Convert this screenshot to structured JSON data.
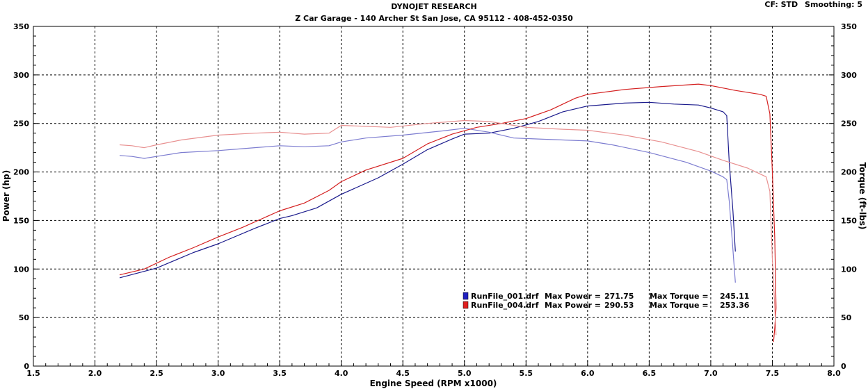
{
  "header": {
    "title": "DYNOJET RESEARCH",
    "subtitle": "Z Car Garage - 140 Archer St San Jose, CA 95112 - 408-452-0350",
    "cf": "CF: STD",
    "smoothing": "Smoothing: 5"
  },
  "legend": [
    {
      "file": "RunFile_001.drf",
      "power_label": "Max Power =",
      "power": "271.75",
      "torque_label": "Max Torque =",
      "torque": "245.11",
      "color": "#1a1a8c"
    },
    {
      "file": "RunFile_004.drf",
      "power_label": "Max Power =",
      "power": "290.53",
      "torque_label": "Max Torque =",
      "torque": "253.36",
      "color": "#d42020"
    }
  ],
  "chart_data": {
    "type": "line",
    "title": "DYNOJET RESEARCH",
    "subtitle": "Z Car Garage - 140 Archer St San Jose, CA 95112 - 408-452-0350",
    "xlabel": "Engine Speed (RPM x1000)",
    "ylabel": "Power (hp)",
    "y2label": "Torque (ft-lbs)",
    "xlim": [
      1.5,
      8.0
    ],
    "ylim": [
      0,
      350
    ],
    "y2lim": [
      0,
      350
    ],
    "xticks": [
      "1.5",
      "2.0",
      "2.5",
      "3.0",
      "3.5",
      "4.0",
      "4.5",
      "5.0",
      "5.5",
      "6.0",
      "6.5",
      "7.0",
      "7.5",
      "8.0"
    ],
    "yticks": [
      "0",
      "50",
      "100",
      "150",
      "200",
      "250",
      "300",
      "350"
    ],
    "grid": true,
    "series": [
      {
        "name": "RunFile_001.drf",
        "measure": "power",
        "color": "#1a1a8c",
        "x": [
          2.2,
          2.5,
          2.8,
          3.0,
          3.3,
          3.5,
          3.6,
          3.8,
          4.0,
          4.3,
          4.5,
          4.7,
          4.9,
          5.0,
          5.2,
          5.4,
          5.6,
          5.8,
          6.0,
          6.3,
          6.5,
          6.7,
          6.9,
          7.0,
          7.1,
          7.13,
          7.15,
          7.18,
          7.2
        ],
        "y": [
          91,
          101,
          117,
          126,
          142,
          152,
          155,
          163,
          177,
          194,
          208,
          223,
          234,
          239,
          240,
          245,
          252,
          262,
          268,
          271,
          271.75,
          270,
          269,
          266,
          262,
          258,
          210,
          160,
          118
        ]
      },
      {
        "name": "RunFile_001.drf",
        "measure": "torque",
        "color": "#7c7cd0",
        "x": [
          2.2,
          2.3,
          2.4,
          2.5,
          2.7,
          3.0,
          3.2,
          3.4,
          3.5,
          3.7,
          3.9,
          4.0,
          4.2,
          4.5,
          4.8,
          5.0,
          5.2,
          5.4,
          5.6,
          5.8,
          6.0,
          6.2,
          6.5,
          6.8,
          7.0,
          7.1,
          7.13,
          7.15,
          7.18,
          7.2
        ],
        "y": [
          217,
          216,
          214,
          216,
          220,
          222,
          224,
          226,
          227,
          226,
          227,
          231,
          235,
          238,
          242,
          245,
          241,
          235,
          234,
          233,
          232,
          228,
          220,
          210,
          201,
          195,
          192,
          170,
          120,
          86
        ]
      },
      {
        "name": "RunFile_004.drf",
        "measure": "power",
        "color": "#d42020",
        "x": [
          2.2,
          2.4,
          2.6,
          2.8,
          3.0,
          3.2,
          3.5,
          3.7,
          3.9,
          4.0,
          4.2,
          4.5,
          4.7,
          4.9,
          5.1,
          5.3,
          5.5,
          5.7,
          5.9,
          6.0,
          6.3,
          6.6,
          6.9,
          7.0,
          7.2,
          7.4,
          7.45,
          7.48,
          7.5,
          7.52,
          7.53,
          7.52,
          7.51
        ],
        "y": [
          94,
          100,
          112,
          122,
          133,
          143,
          160,
          168,
          181,
          190,
          202,
          214,
          229,
          239,
          246,
          250,
          255,
          264,
          276,
          280,
          285,
          288,
          290.5,
          289,
          284,
          280,
          278,
          260,
          200,
          130,
          60,
          40,
          25
        ]
      },
      {
        "name": "RunFile_004.drf",
        "measure": "torque",
        "color": "#e89090",
        "x": [
          2.2,
          2.3,
          2.4,
          2.5,
          2.7,
          3.0,
          3.3,
          3.5,
          3.7,
          3.9,
          4.0,
          4.2,
          4.4,
          4.7,
          5.0,
          5.2,
          5.5,
          5.8,
          6.0,
          6.3,
          6.6,
          6.9,
          7.1,
          7.3,
          7.45,
          7.48,
          7.5,
          7.52,
          7.53
        ],
        "y": [
          228,
          227,
          225,
          228,
          233,
          238,
          240,
          241,
          239,
          240,
          248,
          247,
          246,
          250,
          253,
          252,
          246,
          244,
          243,
          238,
          231,
          221,
          212,
          204,
          195,
          180,
          110,
          60,
          32
        ]
      }
    ]
  }
}
